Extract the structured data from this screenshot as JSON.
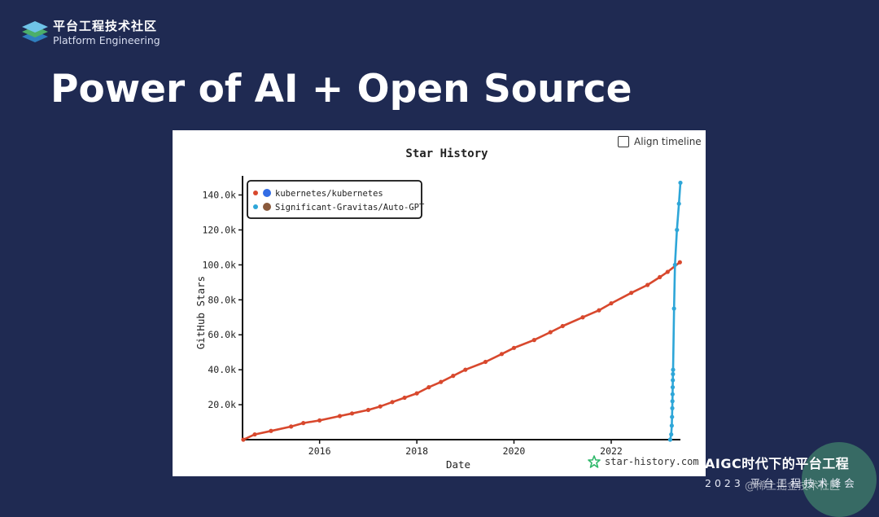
{
  "brand": {
    "name_cn": "平台工程技术社区",
    "name_en": "Platform Engineering"
  },
  "slide": {
    "title": "Power of AI + Open Source"
  },
  "toggle": {
    "label": "Align timeline"
  },
  "footer": {
    "site": "star-history.com",
    "event_line1": "AIGC时代下的平台工程",
    "event_line2": "2023 平台工程技术峰会",
    "watermark": "@稀土掘金技术社区"
  },
  "colors": {
    "kubernetes": "#d8482d",
    "autogpt": "#2ea6d8",
    "background": "#1f2a52"
  },
  "chart_data": {
    "type": "line",
    "title": "Star History",
    "xlabel": "Date",
    "ylabel": "GitHub Stars",
    "xlim": [
      "2014-06-01",
      "2023-06-05"
    ],
    "ylim": [
      0,
      150000
    ],
    "x_ticks": [
      "2016",
      "2018",
      "2020",
      "2022"
    ],
    "y_ticks": [
      "20.0k",
      "40.0k",
      "60.0k",
      "80.0k",
      "100.0k",
      "120.0k",
      "140.0k"
    ],
    "legend_position": "top-left",
    "grid": false,
    "series": [
      {
        "name": "kubernetes/kubernetes",
        "color": "#d8482d",
        "points": [
          [
            "2014-06-07",
            0
          ],
          [
            "2014-09-01",
            3000
          ],
          [
            "2015-01-01",
            5000
          ],
          [
            "2015-06-01",
            7500
          ],
          [
            "2015-09-01",
            9500
          ],
          [
            "2016-01-01",
            11000
          ],
          [
            "2016-06-01",
            13500
          ],
          [
            "2016-09-01",
            15000
          ],
          [
            "2017-01-01",
            17000
          ],
          [
            "2017-04-01",
            19000
          ],
          [
            "2017-07-01",
            21500
          ],
          [
            "2017-10-01",
            24000
          ],
          [
            "2018-01-01",
            26500
          ],
          [
            "2018-04-01",
            30000
          ],
          [
            "2018-07-01",
            33000
          ],
          [
            "2018-10-01",
            36500
          ],
          [
            "2019-01-01",
            40000
          ],
          [
            "2019-06-01",
            44500
          ],
          [
            "2019-10-01",
            49000
          ],
          [
            "2020-01-01",
            52500
          ],
          [
            "2020-06-01",
            57000
          ],
          [
            "2020-10-01",
            61500
          ],
          [
            "2021-01-01",
            65000
          ],
          [
            "2021-06-01",
            70000
          ],
          [
            "2021-10-01",
            74000
          ],
          [
            "2022-01-01",
            78000
          ],
          [
            "2022-06-01",
            84000
          ],
          [
            "2022-10-01",
            88500
          ],
          [
            "2023-01-01",
            93000
          ],
          [
            "2023-03-01",
            96000
          ],
          [
            "2023-06-01",
            101500
          ]
        ]
      },
      {
        "name": "Significant-Gravitas/Auto-GPT",
        "color": "#2ea6d8",
        "points": [
          [
            "2023-03-20",
            0
          ],
          [
            "2023-03-28",
            3000
          ],
          [
            "2023-04-01",
            8000
          ],
          [
            "2023-04-03",
            13000
          ],
          [
            "2023-04-05",
            18000
          ],
          [
            "2023-04-06",
            22000
          ],
          [
            "2023-04-07",
            26000
          ],
          [
            "2023-04-08",
            30000
          ],
          [
            "2023-04-09",
            34000
          ],
          [
            "2023-04-10",
            37500
          ],
          [
            "2023-04-11",
            40000
          ],
          [
            "2023-04-18",
            75000
          ],
          [
            "2023-04-25",
            100000
          ],
          [
            "2023-05-10",
            120000
          ],
          [
            "2023-05-25",
            135000
          ],
          [
            "2023-06-05",
            147000
          ]
        ]
      }
    ]
  }
}
